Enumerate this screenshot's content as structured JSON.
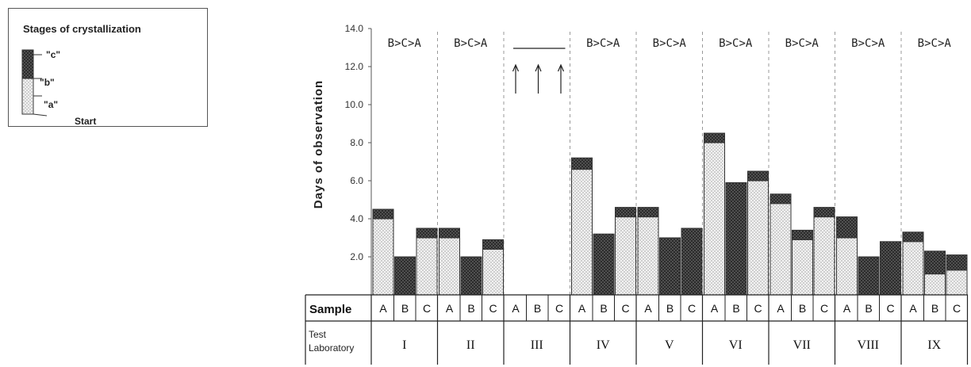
{
  "legend": {
    "title": "Stages of crystallization",
    "labels": [
      "\"c\"",
      "\"b\"",
      "\"a\"",
      "Start"
    ]
  },
  "chart_data": {
    "type": "bar",
    "ylabel": "Days of observation",
    "ylim": [
      0,
      14
    ],
    "yticks": [
      "2.0",
      "4.0",
      "6.0",
      "8.0",
      "10.0",
      "12.0",
      "14.0"
    ],
    "samples": [
      "A",
      "B",
      "C"
    ],
    "row_labels": {
      "sample": "Sample",
      "lab_line1": "Test",
      "lab_line2": "Laboratory"
    },
    "groups": [
      {
        "lab": "I",
        "annotation": "B>C>A",
        "bars": [
          {
            "a": 4.0,
            "b": 0.0,
            "c": 0.5
          },
          {
            "a": 0.0,
            "b": 2.0,
            "c": 0.0
          },
          {
            "a": 3.0,
            "b": 0.0,
            "c": 0.5
          }
        ]
      },
      {
        "lab": "II",
        "annotation": "B>C>A",
        "bars": [
          {
            "a": 3.0,
            "b": 0.0,
            "c": 0.5
          },
          {
            "a": 0.0,
            "b": 2.0,
            "c": 0.0
          },
          {
            "a": 2.4,
            "b": 0.0,
            "c": 0.5
          }
        ]
      },
      {
        "lab": "III",
        "annotation": "",
        "bars": [
          {
            "a": 0,
            "b": 0,
            "c": 0
          },
          {
            "a": 0,
            "b": 0,
            "c": 0
          },
          {
            "a": 0,
            "b": 0,
            "c": 0
          }
        ]
      },
      {
        "lab": "IV",
        "annotation": "B>C>A",
        "bars": [
          {
            "a": 6.6,
            "b": 0.0,
            "c": 0.6
          },
          {
            "a": 0.0,
            "b": 3.2,
            "c": 0.0
          },
          {
            "a": 4.1,
            "b": 0.0,
            "c": 0.5
          }
        ]
      },
      {
        "lab": "V",
        "annotation": "B>C>A",
        "bars": [
          {
            "a": 4.1,
            "b": 0.0,
            "c": 0.5
          },
          {
            "a": 0.0,
            "b": 3.0,
            "c": 0.0
          },
          {
            "a": 0.0,
            "b": 3.5,
            "c": 0.0
          }
        ]
      },
      {
        "lab": "VI",
        "annotation": "B>C>A",
        "bars": [
          {
            "a": 8.0,
            "b": 0.0,
            "c": 0.5
          },
          {
            "a": 0.0,
            "b": 5.9,
            "c": 0.0
          },
          {
            "a": 6.0,
            "b": 0.0,
            "c": 0.5
          }
        ]
      },
      {
        "lab": "VII",
        "annotation": "B>C>A",
        "bars": [
          {
            "a": 4.8,
            "b": 0.0,
            "c": 0.5
          },
          {
            "a": 2.9,
            "b": 0.0,
            "c": 0.5
          },
          {
            "a": 4.1,
            "b": 0.0,
            "c": 0.5
          }
        ]
      },
      {
        "lab": "VIII",
        "annotation": "B>C>A",
        "bars": [
          {
            "a": 3.0,
            "b": 0.0,
            "c": 1.1
          },
          {
            "a": 0.0,
            "b": 2.0,
            "c": 0.0
          },
          {
            "a": 0.0,
            "b": 2.8,
            "c": 0.0
          }
        ]
      },
      {
        "lab": "IX",
        "annotation": "B>C>A",
        "bars": [
          {
            "a": 2.8,
            "b": 0.0,
            "c": 0.5
          },
          {
            "a": 1.1,
            "b": 0.0,
            "c": 1.2
          },
          {
            "a": 1.3,
            "b": 0.0,
            "c": 0.8
          }
        ]
      }
    ]
  }
}
